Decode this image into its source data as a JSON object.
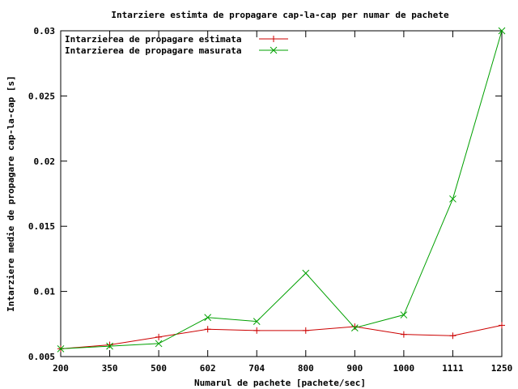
{
  "chart_data": {
    "type": "line",
    "title": "Intarziere estimta de propagare cap-la-cap per numar de pachete",
    "xlabel": "Numarul de pachete [pachete/sec]",
    "ylabel": "Intarziere medie de propagare cap-la-cap [s]",
    "categories": [
      "200",
      "350",
      "500",
      "602",
      "704",
      "800",
      "900",
      "1000",
      "1111",
      "1250"
    ],
    "ylim": [
      0.005,
      0.03
    ],
    "yticks": [
      "0.005",
      "0.01",
      "0.015",
      "0.02",
      "0.025",
      "0.03"
    ],
    "ytick_values": [
      0.005,
      0.01,
      0.015,
      0.02,
      0.025,
      0.03
    ],
    "grid": false,
    "legend_position": "top-left",
    "series": [
      {
        "name": "Intarzierea de propagare estimata",
        "color": "#cc0000",
        "marker": "plus",
        "values": [
          0.0056,
          0.0059,
          0.0065,
          0.0071,
          0.007,
          0.007,
          0.0073,
          0.0067,
          0.0066,
          0.0074
        ]
      },
      {
        "name": "Intarzierea de propagare masurata",
        "color": "#00a000",
        "marker": "cross",
        "values": [
          0.0056,
          0.0058,
          0.006,
          0.008,
          0.0077,
          0.0114,
          0.0072,
          0.0082,
          0.0171,
          0.03
        ]
      }
    ]
  }
}
